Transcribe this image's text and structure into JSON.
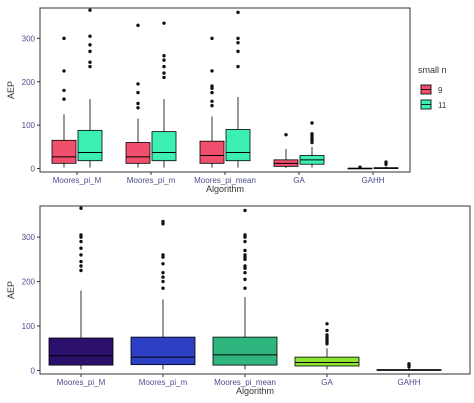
{
  "colors": {
    "panel_border": "#333333",
    "grid": "#ebebeb",
    "tick_label": "#4d4d8f",
    "axis_title": "#333333",
    "whisker": "#000000",
    "outlier": "#111111"
  },
  "chart_data": [
    {
      "type": "boxplot",
      "xlabel": "Algorithm",
      "ylabel": "AEP",
      "categories": [
        "Moores_pi_M",
        "Moores_pi_m",
        "Moores_pi_mean",
        "GA",
        "GAHH"
      ],
      "ylim": [
        -8,
        370
      ],
      "yticks": [
        0,
        100,
        200,
        300
      ],
      "grid": false,
      "legend": {
        "title": "small n",
        "position": "right",
        "entries": [
          {
            "label": "9",
            "color": "#f0506e"
          },
          {
            "label": "11",
            "color": "#3cf0b4"
          }
        ]
      },
      "series": [
        {
          "name": "9",
          "color": "#f0506e",
          "boxes": [
            {
              "category": "Moores_pi_M",
              "whisker_low": 2,
              "q1": 12,
              "median": 27,
              "q3": 65,
              "whisker_high": 125,
              "outliers": [
                160,
                180,
                225,
                300
              ]
            },
            {
              "category": "Moores_pi_m",
              "whisker_low": 2,
              "q1": 12,
              "median": 27,
              "q3": 60,
              "whisker_high": 115,
              "outliers": [
                140,
                150,
                175,
                195,
                330
              ]
            },
            {
              "category": "Moores_pi_mean",
              "whisker_low": 2,
              "q1": 12,
              "median": 30,
              "q3": 63,
              "whisker_high": 120,
              "outliers": [
                145,
                155,
                175,
                185,
                190,
                225,
                300
              ]
            },
            {
              "category": "GA",
              "whisker_low": 1,
              "q1": 5,
              "median": 12,
              "q3": 20,
              "whisker_high": 45,
              "outliers": [
                78
              ]
            },
            {
              "category": "GAHH",
              "whisker_low": 0,
              "q1": 0,
              "median": 0,
              "q3": 1,
              "whisker_high": 2,
              "outliers": [
                3
              ]
            }
          ]
        },
        {
          "name": "11",
          "color": "#3cf0b4",
          "boxes": [
            {
              "category": "Moores_pi_M",
              "whisker_low": 2,
              "q1": 18,
              "median": 37,
              "q3": 88,
              "whisker_high": 160,
              "outliers": [
                235,
                245,
                270,
                285,
                305,
                365
              ]
            },
            {
              "category": "Moores_pi_m",
              "whisker_low": 2,
              "q1": 18,
              "median": 37,
              "q3": 85,
              "whisker_high": 160,
              "outliers": [
                210,
                220,
                235,
                250,
                260,
                335
              ]
            },
            {
              "category": "Moores_pi_mean",
              "whisker_low": 2,
              "q1": 18,
              "median": 37,
              "q3": 90,
              "whisker_high": 165,
              "outliers": [
                235,
                270,
                290,
                300,
                360
              ]
            },
            {
              "category": "GA",
              "whisker_low": 2,
              "q1": 10,
              "median": 20,
              "q3": 30,
              "whisker_high": 50,
              "outliers": [
                60,
                65,
                70,
                75,
                80,
                105
              ]
            },
            {
              "category": "GAHH",
              "whisker_low": 0,
              "q1": 0,
              "median": 1,
              "q3": 2,
              "whisker_high": 5,
              "outliers": [
                10,
                15
              ]
            }
          ]
        }
      ]
    },
    {
      "type": "boxplot",
      "xlabel": "Algorithm",
      "ylabel": "AEP",
      "categories": [
        "Moores_pi_M",
        "Moores_pi_m",
        "Moores_pi_mean",
        "GA",
        "GAHH"
      ],
      "ylim": [
        -8,
        370
      ],
      "yticks": [
        0,
        100,
        200,
        300
      ],
      "grid": false,
      "series": [
        {
          "boxes": [
            {
              "category": "Moores_pi_M",
              "color": "#2a0f6b",
              "whisker_low": 2,
              "q1": 12,
              "median": 33,
              "q3": 73,
              "whisker_high": 180,
              "outliers": [
                225,
                235,
                245,
                260,
                275,
                290,
                300,
                305,
                365
              ]
            },
            {
              "category": "Moores_pi_m",
              "color": "#2d3fc4",
              "whisker_low": 2,
              "q1": 13,
              "median": 30,
              "q3": 75,
              "whisker_high": 160,
              "outliers": [
                185,
                200,
                210,
                220,
                240,
                255,
                260,
                330,
                335
              ]
            },
            {
              "category": "Moores_pi_mean",
              "color": "#2fb57e",
              "whisker_low": 2,
              "q1": 12,
              "median": 35,
              "q3": 75,
              "whisker_high": 165,
              "outliers": [
                185,
                205,
                220,
                230,
                235,
                250,
                255,
                260,
                270,
                290,
                300,
                305,
                360
              ]
            },
            {
              "category": "GA",
              "color": "#8ae632",
              "whisker_low": 2,
              "q1": 10,
              "median": 18,
              "q3": 30,
              "whisker_high": 50,
              "outliers": [
                60,
                65,
                70,
                75,
                80,
                90,
                105
              ]
            },
            {
              "category": "GAHH",
              "color": "#c8e632",
              "whisker_low": 0,
              "q1": 0,
              "median": 1,
              "q3": 2,
              "whisker_high": 5,
              "outliers": [
                8,
                12,
                15
              ]
            }
          ]
        }
      ]
    }
  ]
}
